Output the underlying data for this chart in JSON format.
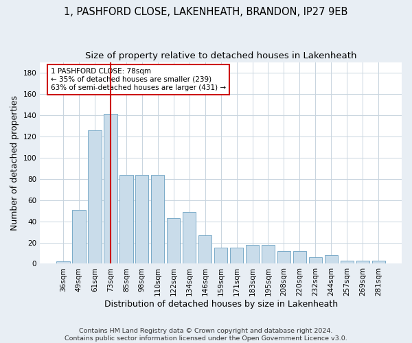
{
  "title1": "1, PASHFORD CLOSE, LAKENHEATH, BRANDON, IP27 9EB",
  "title2": "Size of property relative to detached houses in Lakenheath",
  "xlabel": "Distribution of detached houses by size in Lakenheath",
  "ylabel": "Number of detached properties",
  "categories": [
    "36sqm",
    "49sqm",
    "61sqm",
    "73sqm",
    "85sqm",
    "98sqm",
    "110sqm",
    "122sqm",
    "134sqm",
    "146sqm",
    "159sqm",
    "171sqm",
    "183sqm",
    "195sqm",
    "208sqm",
    "220sqm",
    "232sqm",
    "244sqm",
    "257sqm",
    "269sqm",
    "281sqm"
  ],
  "values": [
    2,
    51,
    126,
    141,
    84,
    84,
    84,
    43,
    49,
    27,
    15,
    15,
    18,
    18,
    12,
    12,
    6,
    8,
    3,
    3,
    3
  ],
  "bar_color": "#c9dcea",
  "bar_edge_color": "#7aaac8",
  "vline_x": 3,
  "vline_color": "#cc0000",
  "annotation_text": "1 PASHFORD CLOSE: 78sqm\n← 35% of detached houses are smaller (239)\n63% of semi-detached houses are larger (431) →",
  "annotation_box_color": "white",
  "annotation_box_edge_color": "#cc0000",
  "ylim": [
    0,
    190
  ],
  "yticks": [
    0,
    20,
    40,
    60,
    80,
    100,
    120,
    140,
    160,
    180
  ],
  "footer1": "Contains HM Land Registry data © Crown copyright and database right 2024.",
  "footer2": "Contains public sector information licensed under the Open Government Licence v3.0.",
  "background_color": "#e8eef4",
  "plot_background_color": "#ffffff",
  "grid_color": "#c8d4de",
  "title_fontsize": 10.5,
  "subtitle_fontsize": 9.5,
  "tick_fontsize": 7.5,
  "label_fontsize": 9,
  "footer_fontsize": 6.8
}
